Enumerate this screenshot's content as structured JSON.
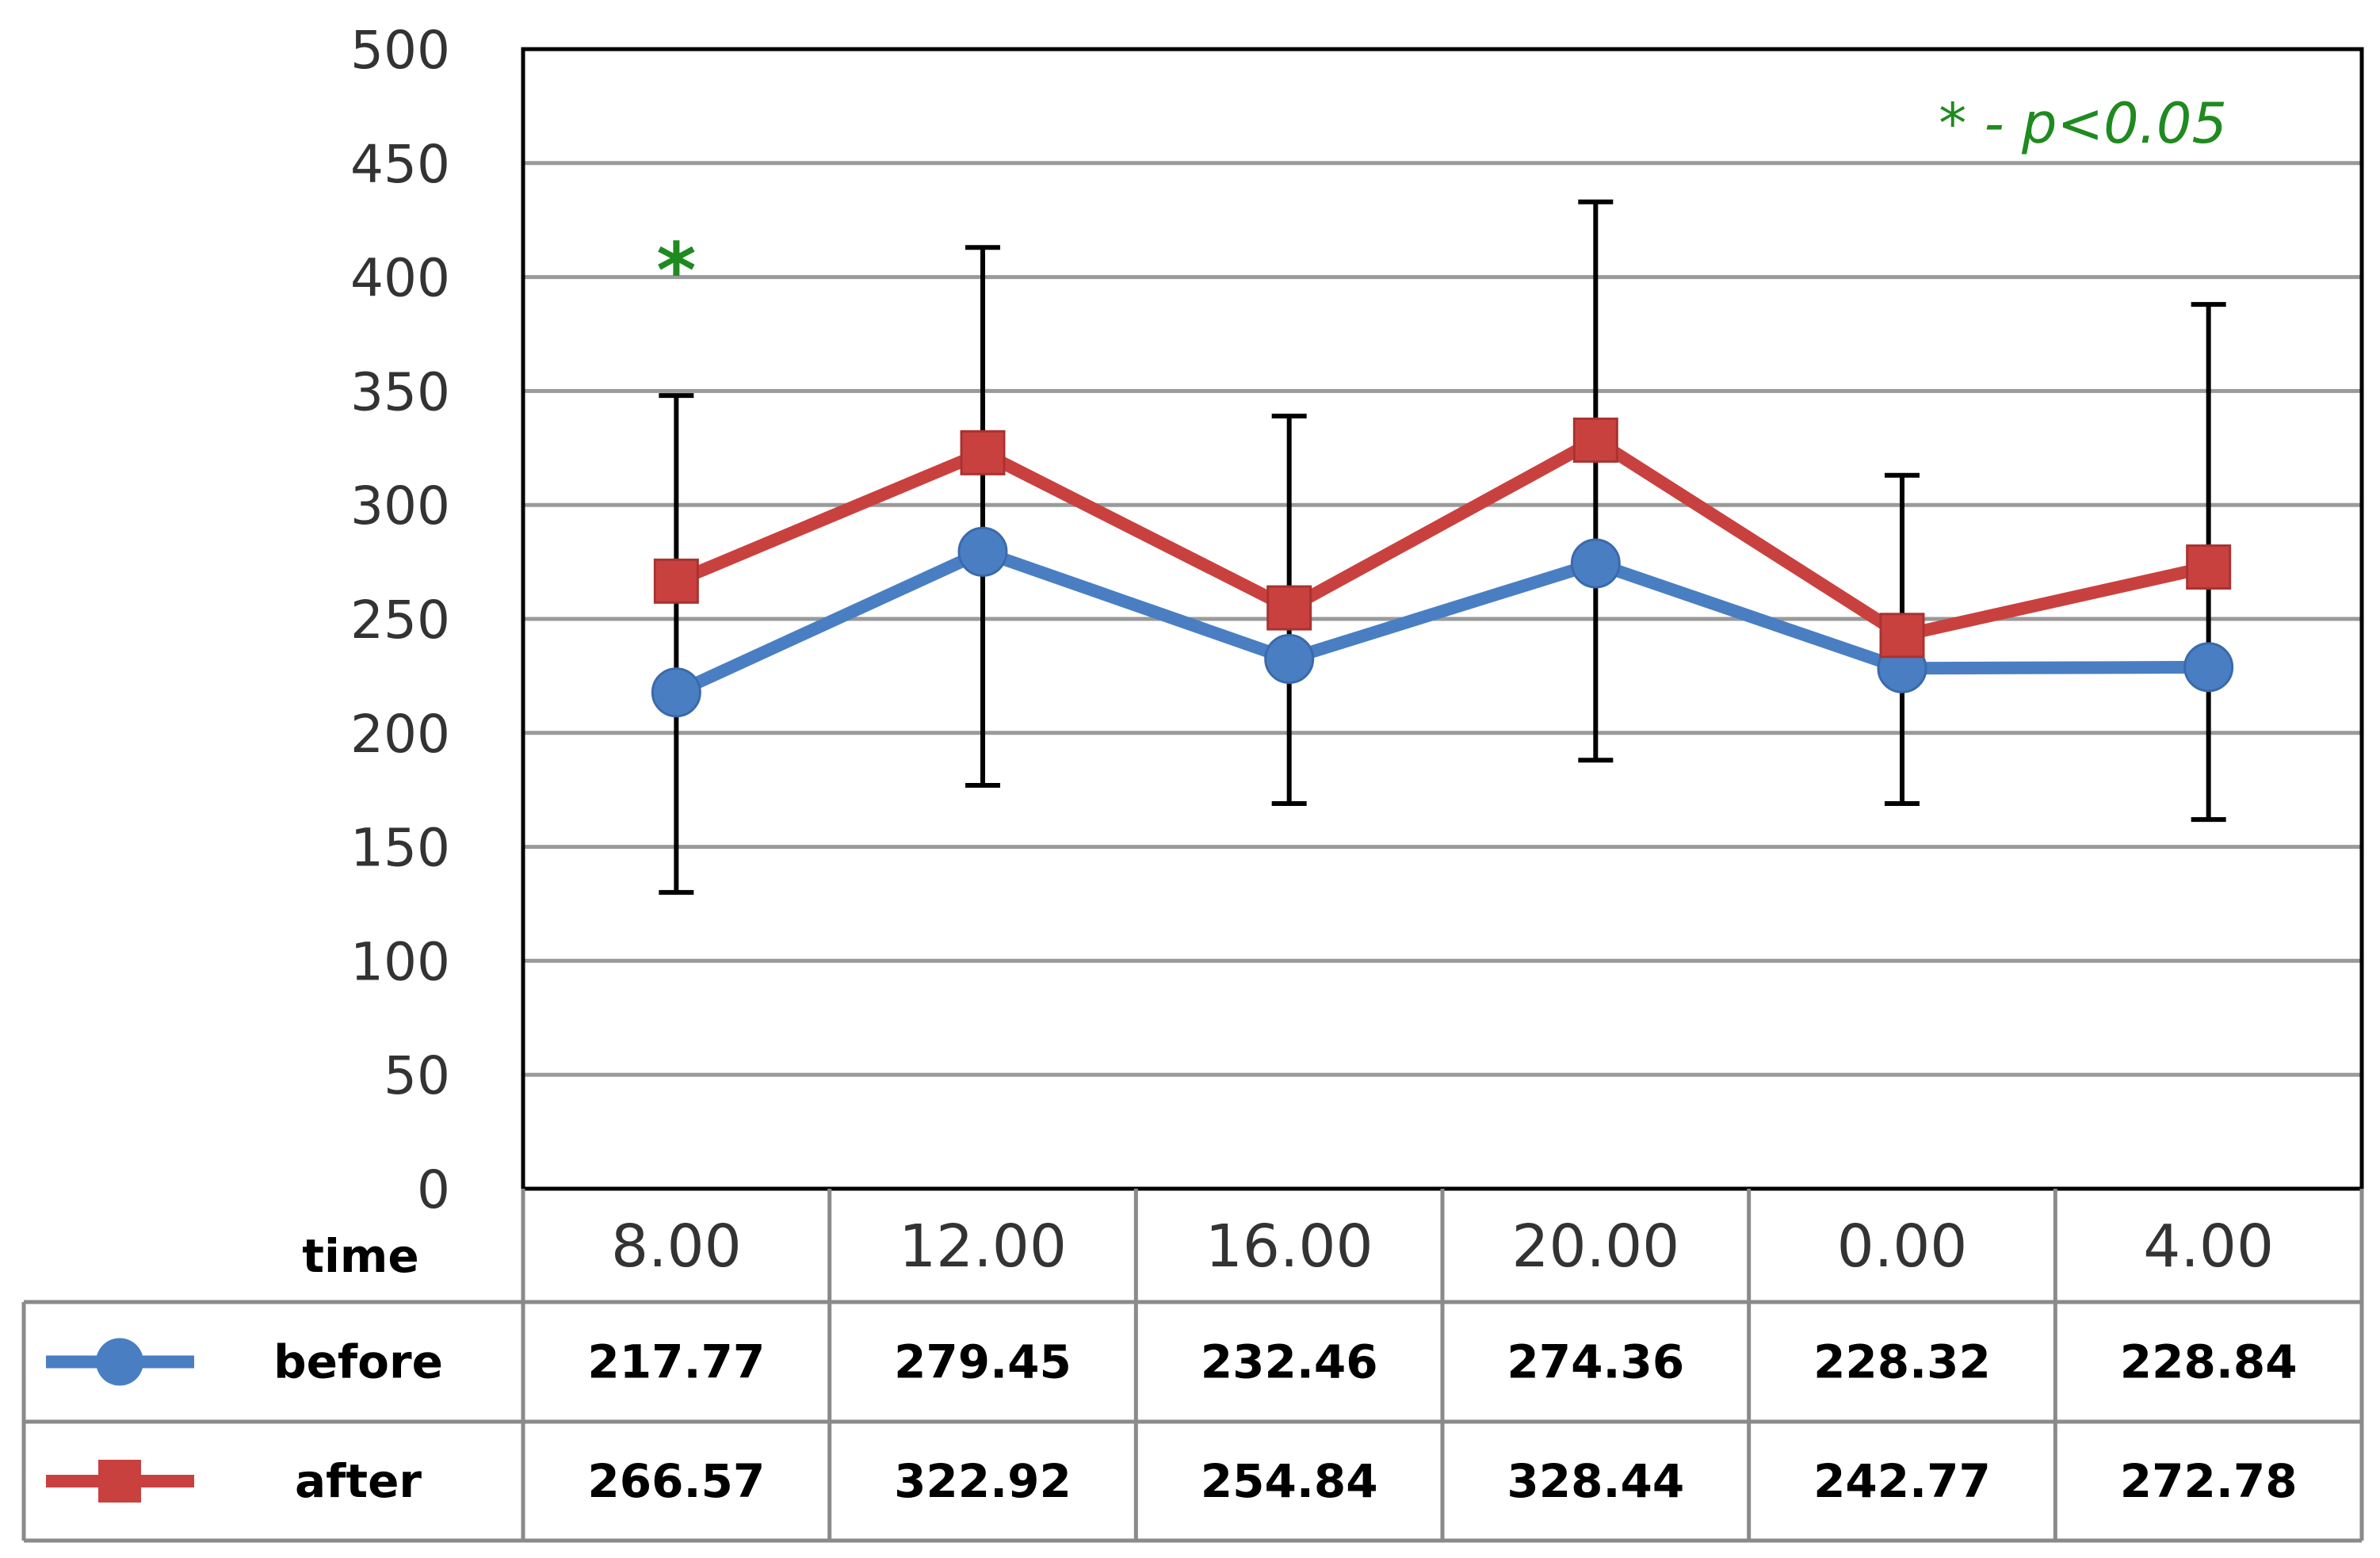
{
  "chart_data": {
    "type": "line",
    "categories_label": "time",
    "categories": [
      "8.00",
      "12.00",
      "16.00",
      "20.00",
      "0.00",
      "4.00"
    ],
    "ylim": [
      0,
      500
    ],
    "yticks": [
      0,
      50,
      100,
      150,
      200,
      250,
      300,
      350,
      400,
      450,
      500
    ],
    "grid": true,
    "legend": "data-table",
    "series": [
      {
        "name": "before",
        "color": "#4A7EC3",
        "marker": "circle",
        "values": [
          217.77,
          279.45,
          232.46,
          274.36,
          228.32,
          228.84
        ],
        "labels": [
          "217.77",
          "279.45",
          "232.46",
          "274.36",
          "228.32",
          "228.84"
        ]
      },
      {
        "name": "after",
        "color": "#C9413F",
        "marker": "square",
        "values": [
          266.57,
          322.92,
          254.84,
          328.44,
          242.77,
          272.78
        ],
        "labels": [
          "266.57",
          "322.92",
          "254.84",
          "328.44",
          "242.77",
          "272.78"
        ],
        "error_bars": [
          [
            130,
            348
          ],
          [
            177,
            413
          ],
          [
            169,
            339
          ],
          [
            188,
            433
          ],
          [
            169,
            313
          ],
          [
            162,
            388
          ]
        ]
      }
    ],
    "annotations": {
      "significance_marker": "*",
      "significance_category": "8.00",
      "significance_value": 405,
      "note": "* - p<0.05",
      "note_color": "#1F8A1F"
    }
  }
}
